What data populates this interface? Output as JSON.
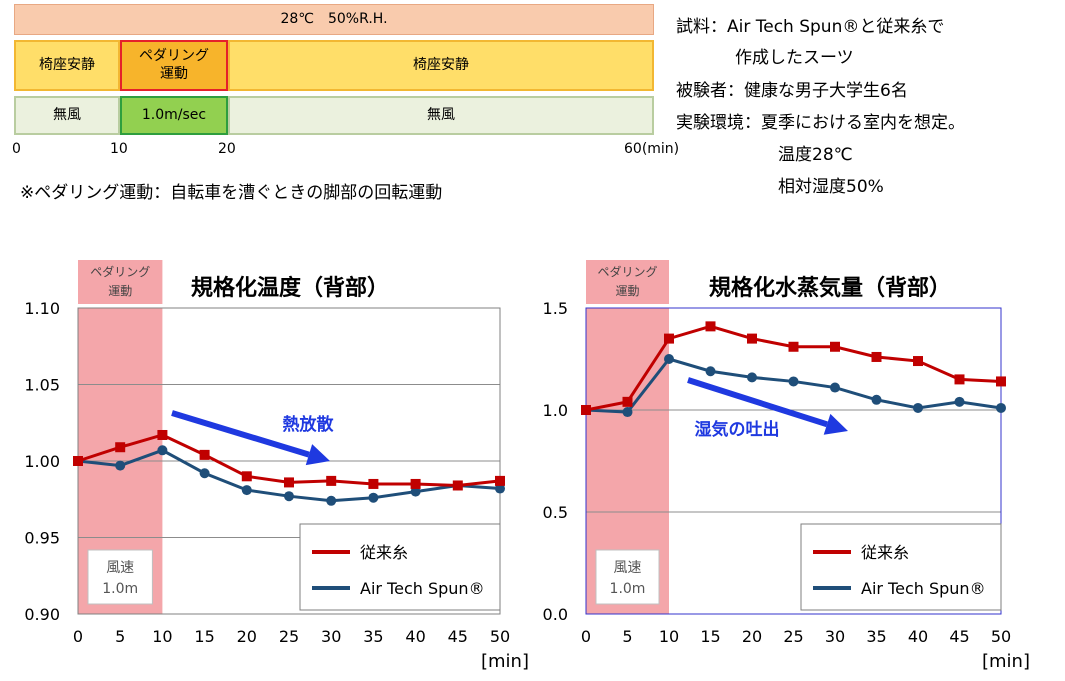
{
  "protocol": {
    "condition_label": "28℃　50%R.H.",
    "phase_before": "椅座安静",
    "phase_pedal": "ペダリング\n運動",
    "phase_after": "椅座安静",
    "wind_before": "無風",
    "wind_pedal": "1.0m/sec",
    "wind_after": "無風",
    "time_ticks": [
      "0",
      "10",
      "20",
      "60(min)"
    ],
    "footnote": "※ペダリング運動：自転車を漕ぐときの脚部の回転運動",
    "colors": {
      "condition_bg": "#F9CBAD",
      "condition_border": "#E8A883",
      "rest_bg": "#FFDE69",
      "rest_border": "#F2B732",
      "pedal_bg": "#F7B42B",
      "pedal_border": "#E5202A",
      "calm_bg": "#EBF1DE",
      "calm_border": "#B9CDA0",
      "wind_bg": "#92D050",
      "wind_border": "#2E9E3E"
    }
  },
  "info": {
    "lines": [
      "試料：Air Tech Spun®と従来糸で",
      "作成したスーツ",
      "被験者：健康な男子大学生6名",
      "実験環境：夏季における室内を想定。",
      "温度28℃",
      "相対湿度50%"
    ]
  },
  "chart_data": [
    {
      "type": "line",
      "title": "規格化温度（背部）",
      "x": [
        0,
        5,
        10,
        15,
        20,
        25,
        30,
        35,
        40,
        45,
        50
      ],
      "x_tick_labels": [
        "0",
        "5",
        "10",
        "15",
        "20",
        "25",
        "30",
        "35",
        "40",
        "45",
        "50"
      ],
      "xlim": [
        0,
        50
      ],
      "ylim": [
        0.9,
        1.1
      ],
      "y_ticks": [
        0.9,
        0.95,
        1.0,
        1.05,
        1.1
      ],
      "y_tick_labels": [
        "0.90",
        "0.95",
        "1.00",
        "1.05",
        "1.10"
      ],
      "x_unit_label": "[min]",
      "shaded_region": {
        "x0": 0,
        "x1": 10,
        "label": "ペダリング\n運動",
        "color": "#F4A6AA"
      },
      "speed_box": {
        "label": "風速\n1.0m"
      },
      "annotation": {
        "text": "熱放散",
        "color": "#1F39E0"
      },
      "grid": true,
      "legend_position": "bottom-right",
      "series": [
        {
          "name": "従来糸",
          "color": "#C00000",
          "marker": "square",
          "values": [
            1.0,
            1.009,
            1.017,
            1.004,
            0.99,
            0.986,
            0.987,
            0.985,
            0.985,
            0.984,
            0.987
          ]
        },
        {
          "name": "Air Tech Spun®",
          "color": "#1F4E79",
          "marker": "circle",
          "values": [
            1.0,
            0.997,
            1.007,
            0.992,
            0.981,
            0.977,
            0.974,
            0.976,
            0.98,
            0.984,
            0.982
          ]
        }
      ]
    },
    {
      "type": "line",
      "title": "規格化水蒸気量（背部）",
      "x": [
        0,
        5,
        10,
        15,
        20,
        25,
        30,
        35,
        40,
        45,
        50
      ],
      "x_tick_labels": [
        "0",
        "5",
        "10",
        "15",
        "20",
        "25",
        "30",
        "35",
        "40",
        "45",
        "50"
      ],
      "xlim": [
        0,
        50
      ],
      "ylim": [
        0.0,
        1.5
      ],
      "y_ticks": [
        0.0,
        0.5,
        1.0,
        1.5
      ],
      "y_tick_labels": [
        "0.0",
        "0.5",
        "1.0",
        "1.5"
      ],
      "x_unit_label": "[min]",
      "shaded_region": {
        "x0": 0,
        "x1": 10,
        "label": "ペダリング\n運動",
        "color": "#F4A6AA"
      },
      "speed_box": {
        "label": "風速\n1.0m"
      },
      "annotation": {
        "text": "湿気の吐出",
        "color": "#1F39E0"
      },
      "grid": true,
      "legend_position": "bottom-right",
      "series": [
        {
          "name": "従来糸",
          "color": "#C00000",
          "marker": "square",
          "values": [
            1.0,
            1.04,
            1.35,
            1.41,
            1.35,
            1.31,
            1.31,
            1.26,
            1.24,
            1.15,
            1.14
          ]
        },
        {
          "name": "Air Tech Spun®",
          "color": "#1F4E79",
          "marker": "circle",
          "values": [
            1.0,
            0.99,
            1.25,
            1.19,
            1.16,
            1.14,
            1.11,
            1.05,
            1.01,
            1.04,
            1.01
          ]
        }
      ]
    }
  ]
}
